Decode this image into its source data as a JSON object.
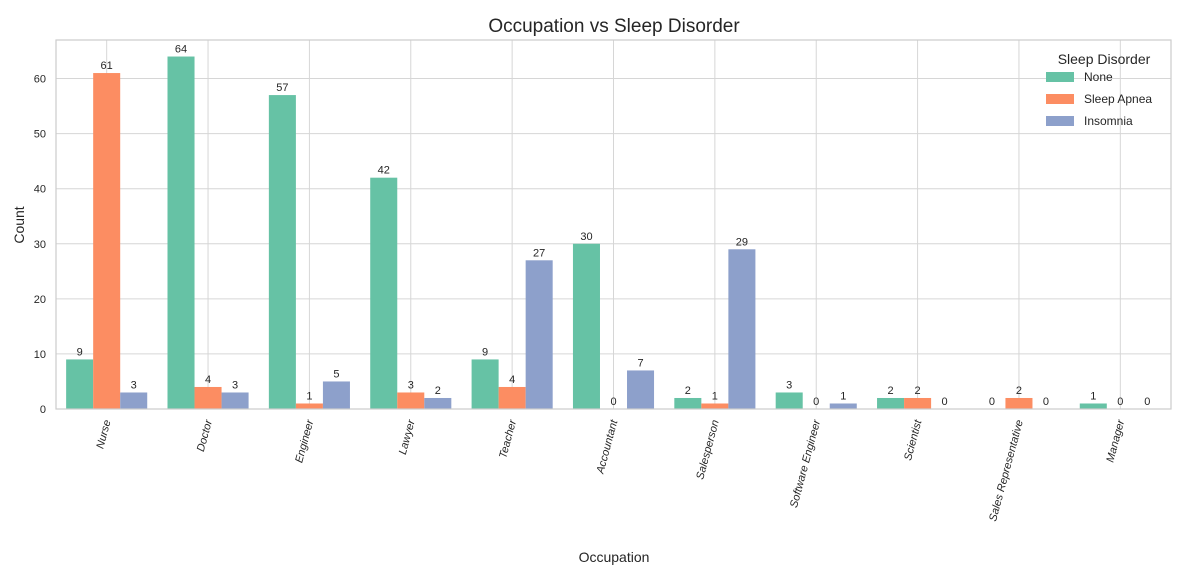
{
  "chart_data": {
    "type": "bar",
    "title": "Occupation vs Sleep Disorder",
    "xlabel": "Occupation",
    "ylabel": "Count",
    "ylim": [
      0,
      67
    ],
    "yticks": [
      0,
      10,
      20,
      30,
      40,
      50,
      60
    ],
    "grid": true,
    "legend": {
      "title": "Sleep Disorder",
      "position": "top-right"
    },
    "categories": [
      "Nurse",
      "Doctor",
      "Engineer",
      "Lawyer",
      "Teacher",
      "Accountant",
      "Salesperson",
      "Software Engineer",
      "Scientist",
      "Sales Representative",
      "Manager"
    ],
    "series": [
      {
        "name": "None",
        "color": "#66c2a5",
        "values": [
          9,
          64,
          57,
          42,
          9,
          30,
          2,
          3,
          2,
          0,
          1
        ]
      },
      {
        "name": "Sleep Apnea",
        "color": "#fc8d62",
        "values": [
          61,
          4,
          1,
          3,
          4,
          0,
          1,
          0,
          2,
          2,
          0
        ]
      },
      {
        "name": "Insomnia",
        "color": "#8da0cb",
        "values": [
          3,
          3,
          5,
          2,
          27,
          7,
          29,
          1,
          0,
          0,
          0
        ]
      }
    ]
  }
}
